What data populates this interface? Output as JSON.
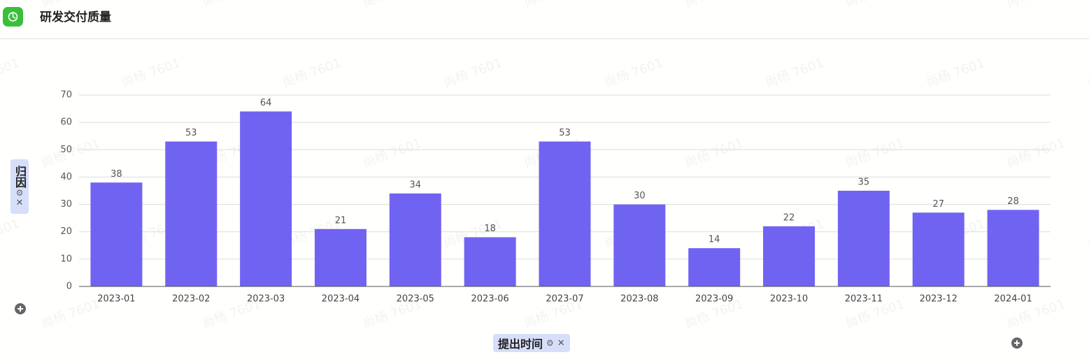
{
  "watermark": "尚杨 7601",
  "chart_data": {
    "type": "bar",
    "title": "研发交付质量",
    "x_label": "提出时间",
    "y_label": "归因",
    "categories": [
      "2023-01",
      "2023-02",
      "2023-03",
      "2023-04",
      "2023-05",
      "2023-06",
      "2023-07",
      "2023-08",
      "2023-09",
      "2023-10",
      "2023-11",
      "2023-12",
      "2024-01"
    ],
    "values": [
      38,
      53,
      64,
      21,
      34,
      18,
      53,
      30,
      14,
      22,
      35,
      27,
      28
    ],
    "color": "#7163f2",
    "ylim": [
      0,
      70
    ],
    "yticks": [
      0,
      10,
      20,
      30,
      40,
      50,
      60,
      70
    ],
    "grid": true
  }
}
